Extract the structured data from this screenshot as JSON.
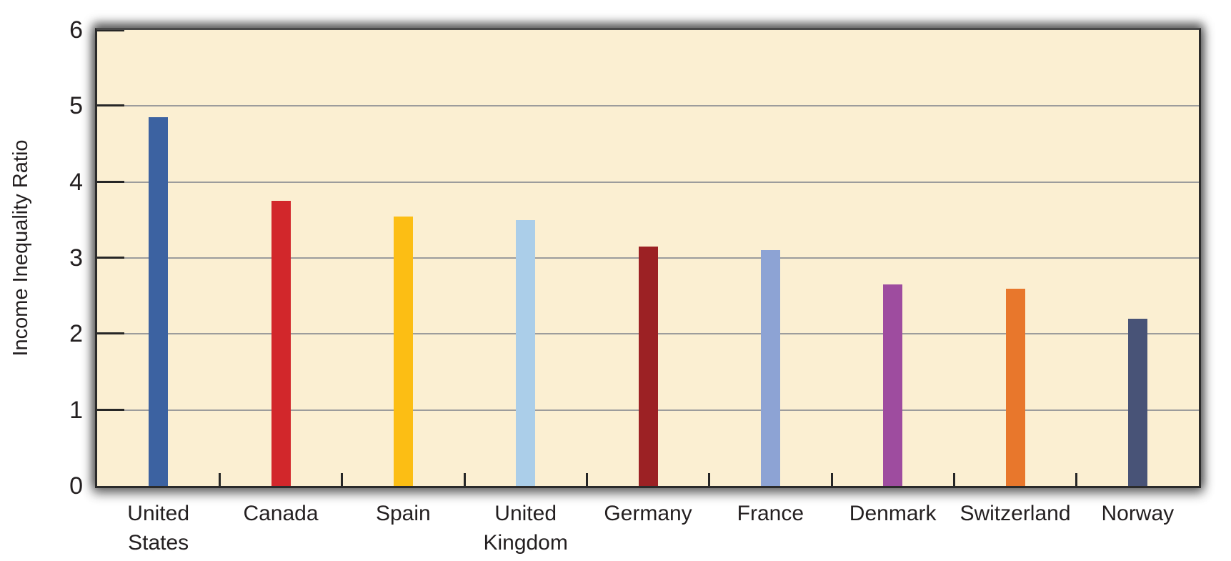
{
  "page": {
    "background": "#FFFFFF"
  },
  "chart_data": {
    "type": "bar",
    "title": "",
    "xlabel": "",
    "ylabel": "Income Inequality Ratio",
    "categories": [
      "United States",
      "Canada",
      "Spain",
      "United Kingdom",
      "Germany",
      "France",
      "Denmark",
      "Switzerland",
      "Norway"
    ],
    "tick_labels": [
      "United\nStates",
      "Canada",
      "Spain",
      "United\nKingdom",
      "Germany",
      "France",
      "Denmark",
      "Switzerland",
      "Norway"
    ],
    "values": [
      4.85,
      3.75,
      3.55,
      3.5,
      3.15,
      3.1,
      2.65,
      2.6,
      2.2
    ],
    "bar_colors": [
      "#3C62A1",
      "#D2272B",
      "#FCBE14",
      "#ABCEE9",
      "#9C2124",
      "#8DA3D4",
      "#9E4C9F",
      "#E8772C",
      "#485377"
    ],
    "ylim": [
      0,
      6
    ],
    "yticks": [
      0,
      1,
      2,
      3,
      4,
      5,
      6
    ],
    "grid": "horizontal",
    "legend": "none",
    "plot_background": "#FBEFD2",
    "gridline_color": "#9C9C9C",
    "axis_color": "#262626",
    "text_color": "#231F20"
  }
}
